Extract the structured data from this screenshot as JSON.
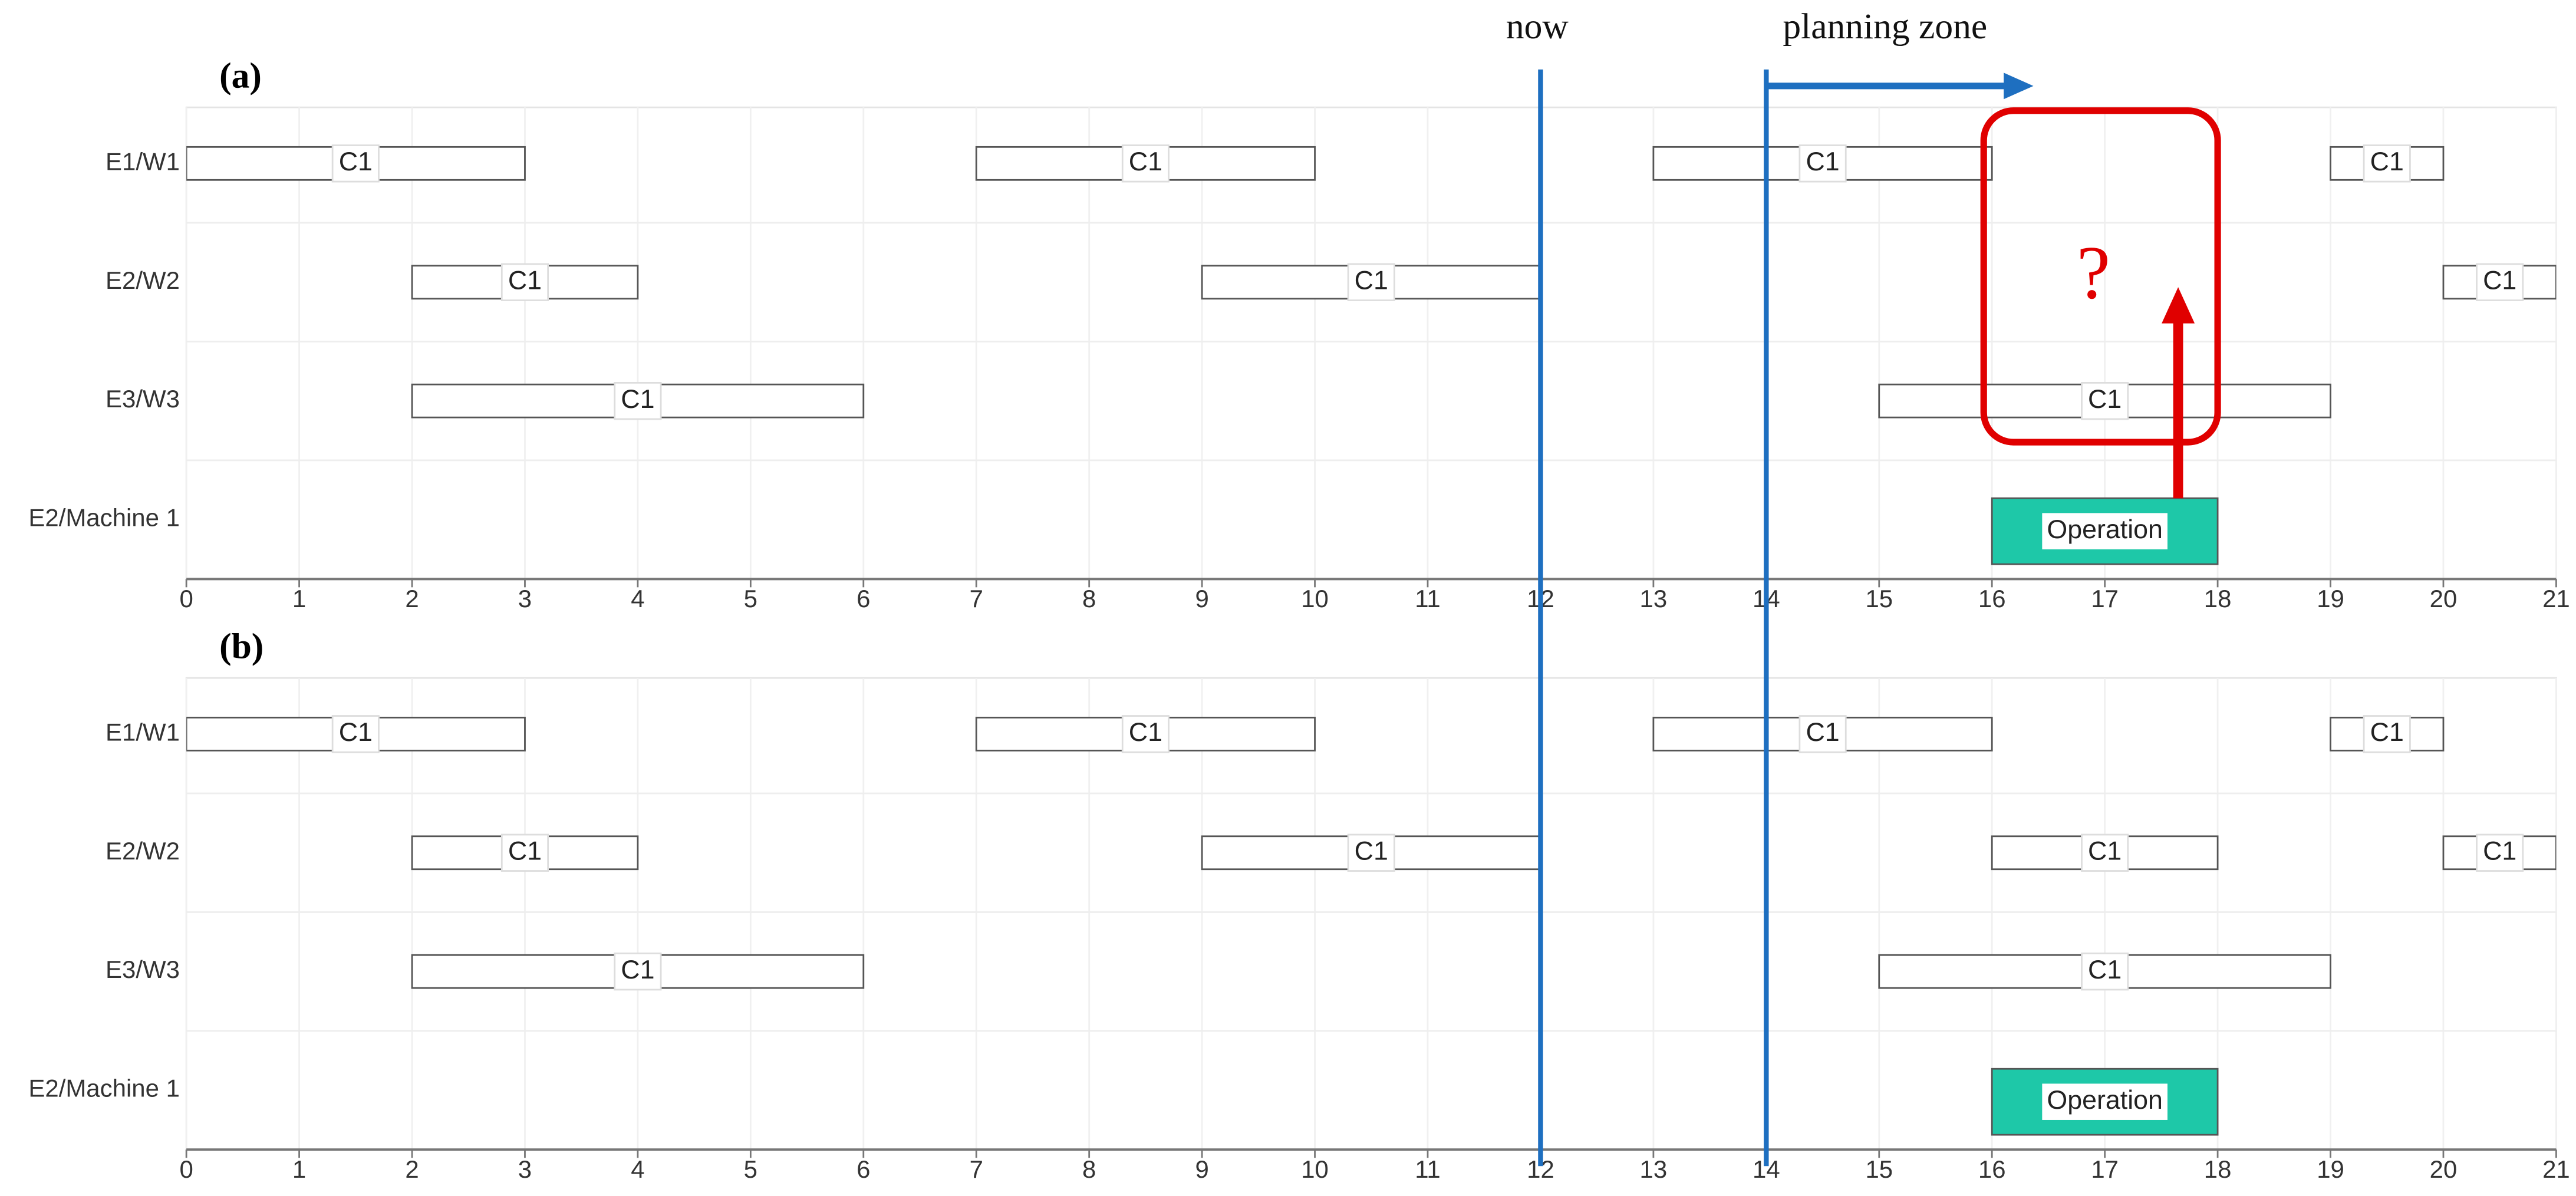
{
  "chart_data": [
    {
      "type": "gantt",
      "label": "(a)",
      "rows": [
        "E1/W1",
        "E2/W2",
        "E3/W3",
        "E2/Machine 1"
      ],
      "xlim": [
        0,
        21
      ],
      "xticks": [
        0,
        1,
        2,
        3,
        4,
        5,
        6,
        7,
        8,
        9,
        10,
        11,
        12,
        13,
        14,
        15,
        16,
        17,
        18,
        19,
        20,
        21
      ],
      "grid": true,
      "tasks": [
        {
          "row": 0,
          "start": 0,
          "end": 3,
          "label": "C1",
          "color": "#ffffff"
        },
        {
          "row": 0,
          "start": 7,
          "end": 10,
          "label": "C1",
          "color": "#ffffff"
        },
        {
          "row": 0,
          "start": 13,
          "end": 16,
          "label": "C1",
          "color": "#ffffff"
        },
        {
          "row": 0,
          "start": 19,
          "end": 20,
          "label": "C1",
          "color": "#ffffff"
        },
        {
          "row": 1,
          "start": 2,
          "end": 4,
          "label": "C1",
          "color": "#ffffff"
        },
        {
          "row": 1,
          "start": 9,
          "end": 12,
          "label": "C1",
          "color": "#ffffff"
        },
        {
          "row": 1,
          "start": 20,
          "end": 21,
          "label": "C1",
          "color": "#ffffff"
        },
        {
          "row": 2,
          "start": 2,
          "end": 6,
          "label": "C1",
          "color": "#ffffff"
        },
        {
          "row": 2,
          "start": 15,
          "end": 19,
          "label": "C1",
          "color": "#ffffff"
        },
        {
          "row": 3,
          "start": 16,
          "end": 18,
          "label": "Operation",
          "color": "#1ec8a8"
        }
      ]
    },
    {
      "type": "gantt",
      "label": "(b)",
      "rows": [
        "E1/W1",
        "E2/W2",
        "E3/W3",
        "E2/Machine 1"
      ],
      "xlim": [
        0,
        21
      ],
      "xticks": [
        0,
        1,
        2,
        3,
        4,
        5,
        6,
        7,
        8,
        9,
        10,
        11,
        12,
        13,
        14,
        15,
        16,
        17,
        18,
        19,
        20,
        21
      ],
      "grid": true,
      "tasks": [
        {
          "row": 0,
          "start": 0,
          "end": 3,
          "label": "C1",
          "color": "#ffffff"
        },
        {
          "row": 0,
          "start": 7,
          "end": 10,
          "label": "C1",
          "color": "#ffffff"
        },
        {
          "row": 0,
          "start": 13,
          "end": 16,
          "label": "C1",
          "color": "#ffffff"
        },
        {
          "row": 0,
          "start": 19,
          "end": 20,
          "label": "C1",
          "color": "#ffffff"
        },
        {
          "row": 1,
          "start": 2,
          "end": 4,
          "label": "C1",
          "color": "#ffffff"
        },
        {
          "row": 1,
          "start": 9,
          "end": 12,
          "label": "C1",
          "color": "#ffffff"
        },
        {
          "row": 1,
          "start": 16,
          "end": 18,
          "label": "C1",
          "color": "#ffffff"
        },
        {
          "row": 1,
          "start": 20,
          "end": 21,
          "label": "C1",
          "color": "#ffffff"
        },
        {
          "row": 2,
          "start": 2,
          "end": 6,
          "label": "C1",
          "color": "#ffffff"
        },
        {
          "row": 2,
          "start": 15,
          "end": 19,
          "label": "C1",
          "color": "#ffffff"
        },
        {
          "row": 3,
          "start": 16,
          "end": 18,
          "label": "Operation",
          "color": "#1ec8a8"
        }
      ]
    }
  ],
  "markers": [
    {
      "label": "now",
      "x": 12,
      "color": "#1e6fc0"
    },
    {
      "label": "planning zone",
      "x": 14,
      "color": "#1e6fc0"
    }
  ],
  "annotation": "?"
}
